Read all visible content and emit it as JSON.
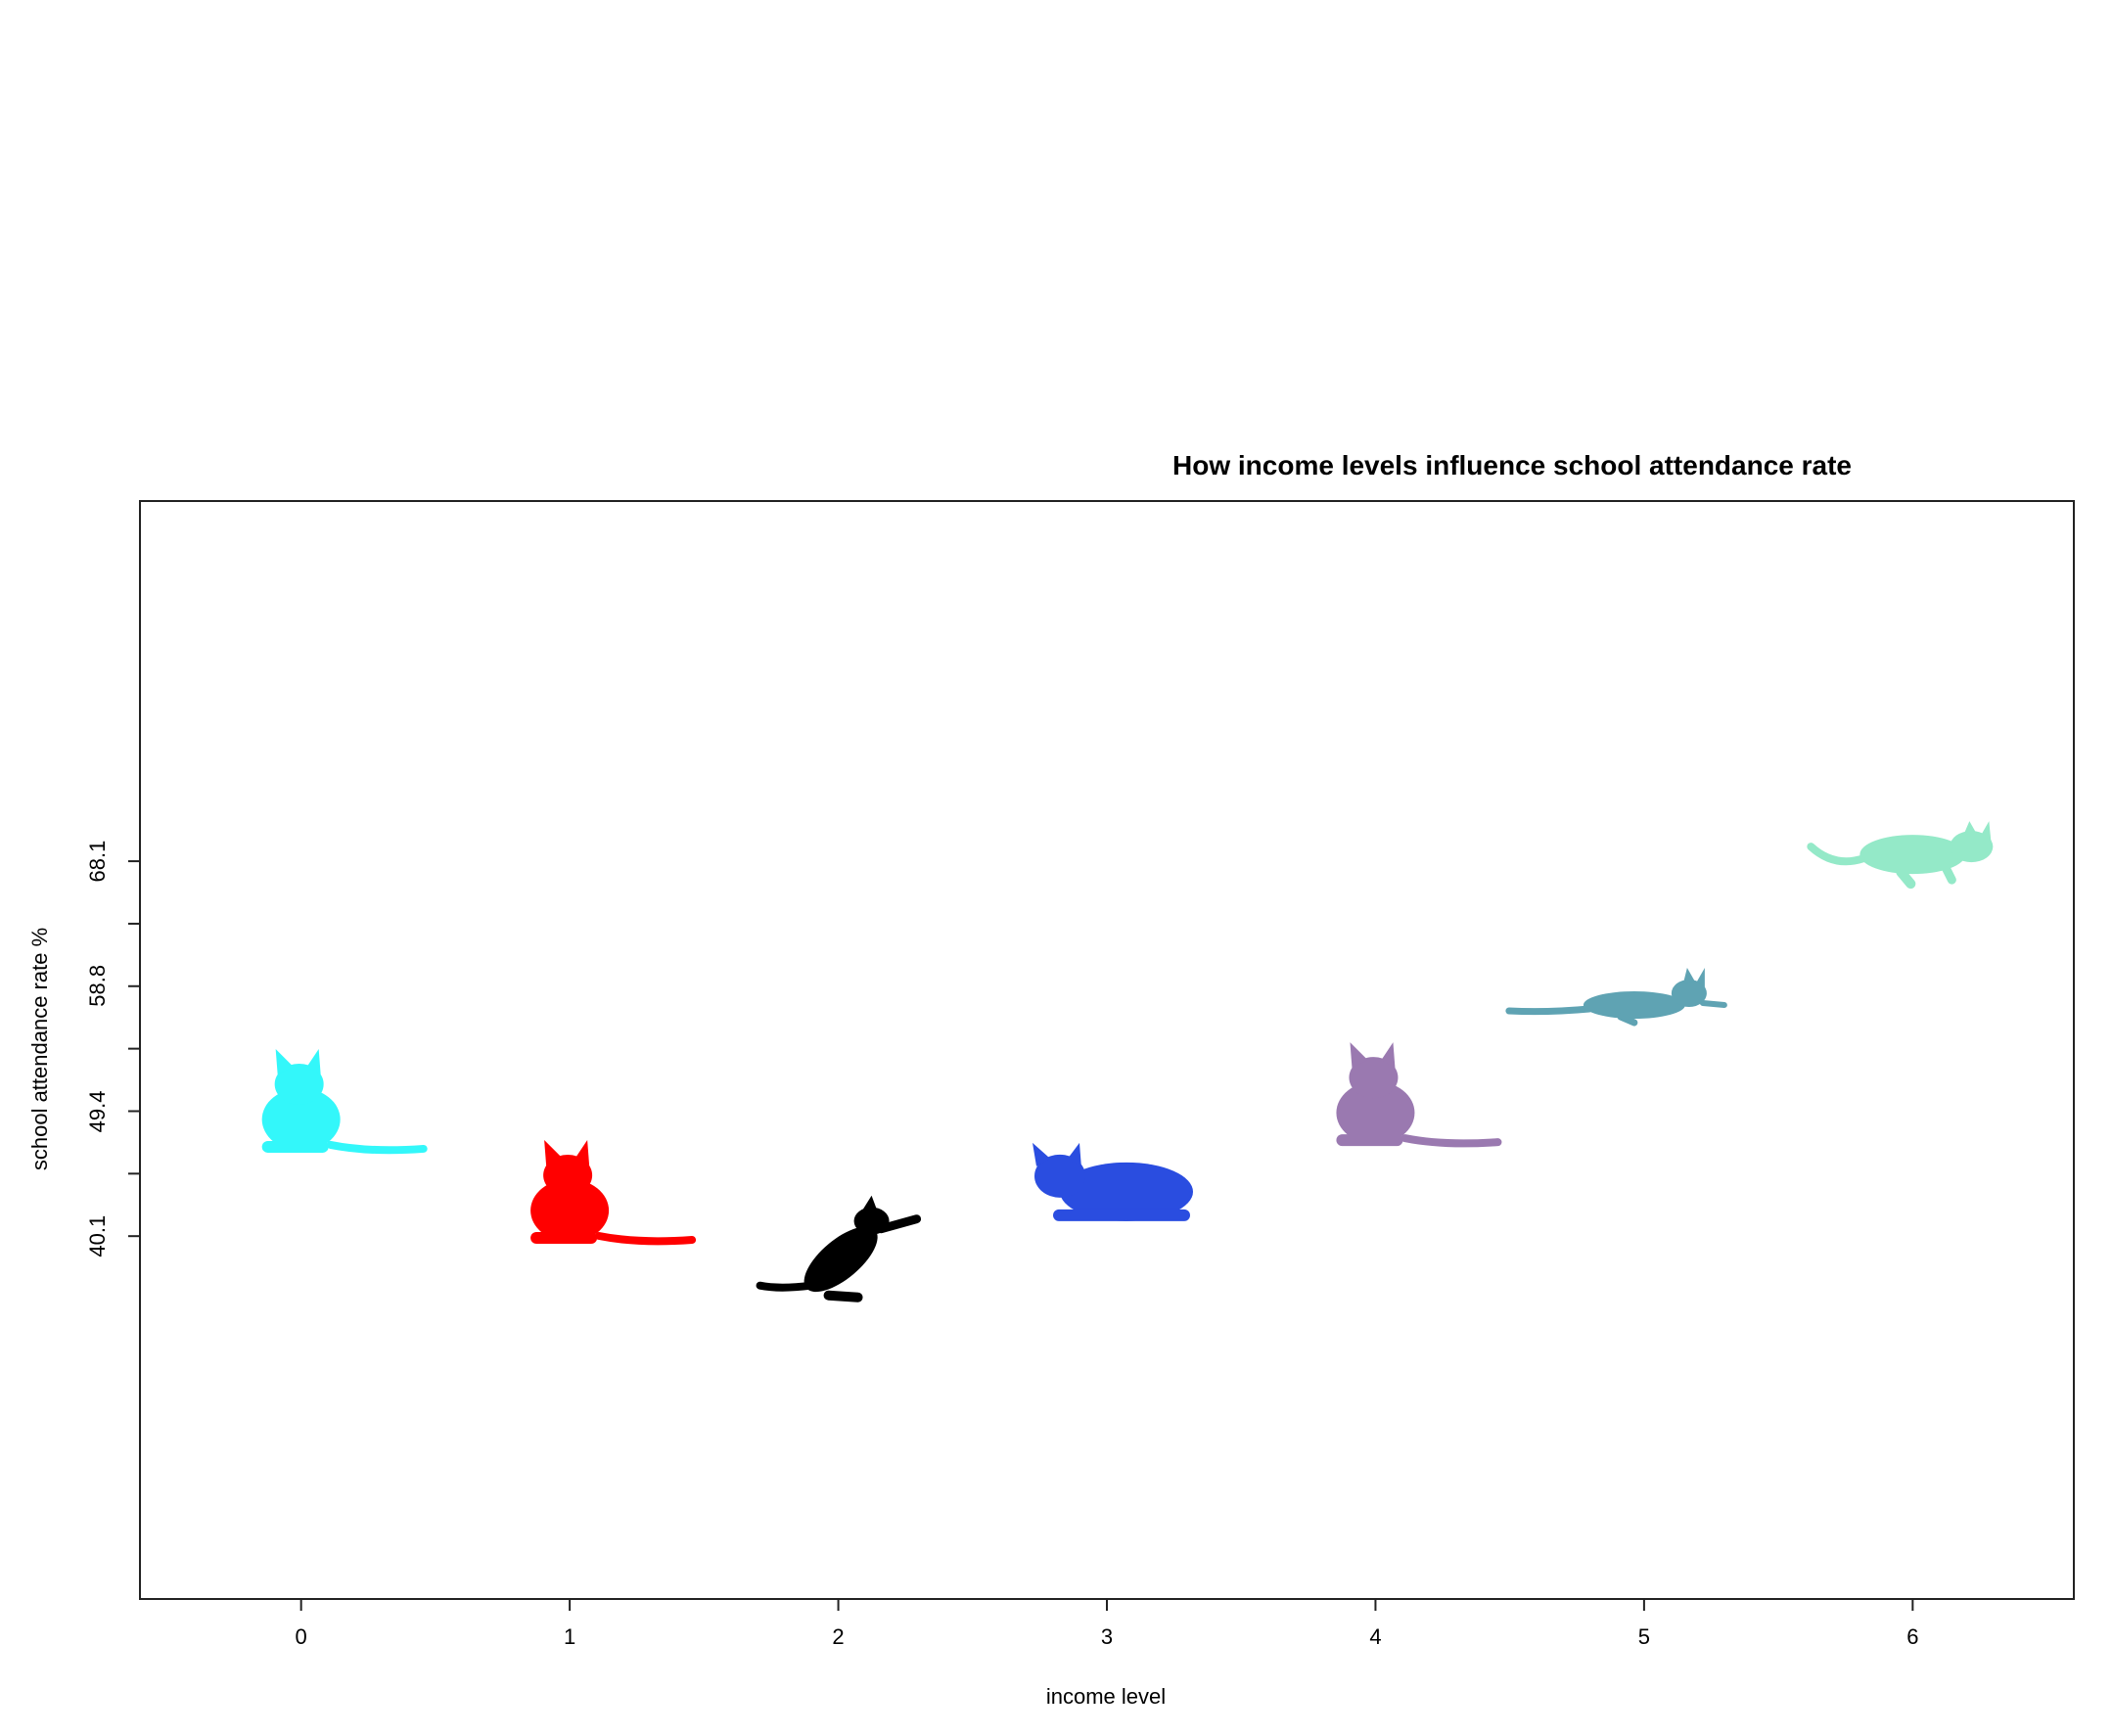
{
  "chart_data": {
    "type": "scatter",
    "title": "How income levels influence school attendance rate",
    "xlabel": "income level",
    "ylabel": "school attendance rate %",
    "xlim": [
      -0.6,
      6.6
    ],
    "ylim": [
      13.0,
      95.0
    ],
    "x_ticks": [
      "0",
      "1",
      "2",
      "3",
      "4",
      "5",
      "6"
    ],
    "y_ticks": [
      "40.1",
      "49.4",
      "58.8",
      "68.1"
    ],
    "grid": false,
    "legend": "none",
    "marker": "cat-silhouette",
    "points": [
      {
        "x": 0,
        "y": 49.4,
        "color": "#33f7fa",
        "pose": "sitting"
      },
      {
        "x": 1,
        "y": 42.6,
        "color": "#ff0000",
        "pose": "sitting"
      },
      {
        "x": 2,
        "y": 38.6,
        "color": "#000000",
        "pose": "pouncing"
      },
      {
        "x": 3,
        "y": 44.0,
        "color": "#2a4de0",
        "pose": "lying"
      },
      {
        "x": 4,
        "y": 49.9,
        "color": "#9a79b0",
        "pose": "sitting"
      },
      {
        "x": 5,
        "y": 57.8,
        "color": "#5fa3b3",
        "pose": "crouching"
      },
      {
        "x": 6,
        "y": 68.9,
        "color": "#94e9c8",
        "pose": "stalking"
      }
    ]
  }
}
